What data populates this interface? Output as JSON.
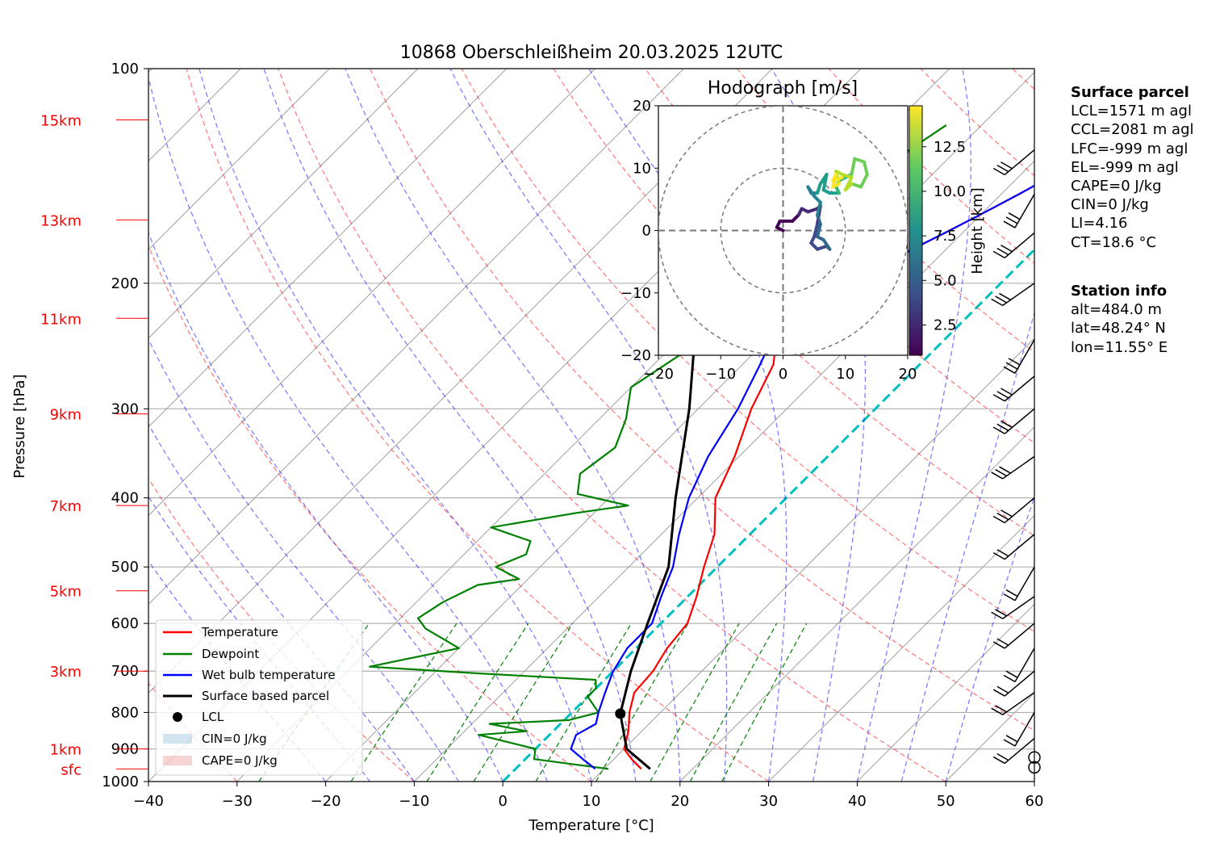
{
  "title": "10868 Oberschleißheim 20.03.2025 12UTC",
  "xlabel": "Temperature [°C]",
  "ylabel": "Pressure [hPa]",
  "hodograph": {
    "title": "Hodograph [m/s]",
    "x_ticks": [
      "−20",
      "−10",
      "0",
      "10",
      "20"
    ],
    "y_ticks": [
      "20",
      "10",
      "0",
      "−10",
      "−20"
    ],
    "colorbar_label": "Height [km]",
    "colorbar_ticks": [
      "12.5",
      "10.0",
      "7.5",
      "5.0",
      "2.5"
    ],
    "path": [
      [
        0,
        0
      ],
      [
        -1,
        0.5
      ],
      [
        -0.5,
        1.5
      ],
      [
        1.5,
        1.5
      ],
      [
        2.5,
        2.5
      ],
      [
        3,
        3.5
      ],
      [
        4,
        3
      ],
      [
        5.5,
        3.5
      ],
      [
        6,
        4
      ],
      [
        5.5,
        1
      ],
      [
        5,
        -1
      ],
      [
        4.5,
        -2
      ],
      [
        5.5,
        -3
      ],
      [
        7,
        -2.5
      ],
      [
        7.5,
        -3
      ],
      [
        6.5,
        -1.5
      ],
      [
        5.5,
        -1
      ],
      [
        6,
        1
      ],
      [
        5.5,
        2.5
      ],
      [
        6,
        4.5
      ],
      [
        5,
        5.5
      ],
      [
        4,
        7
      ],
      [
        4.5,
        6
      ],
      [
        5.5,
        6
      ],
      [
        6,
        7.5
      ],
      [
        7,
        9
      ],
      [
        6.5,
        6.5
      ],
      [
        7.5,
        6
      ],
      [
        9,
        6
      ],
      [
        8.5,
        7
      ],
      [
        9,
        8
      ],
      [
        10,
        8.5
      ],
      [
        11,
        9
      ],
      [
        11.5,
        11.5
      ],
      [
        13,
        11
      ],
      [
        13.5,
        9
      ],
      [
        12.5,
        7
      ],
      [
        11,
        7.5
      ],
      [
        10,
        6.5
      ],
      [
        11,
        8.5
      ],
      [
        9.5,
        9
      ],
      [
        8.5,
        9.5
      ],
      [
        9,
        7.5
      ],
      [
        8,
        7
      ],
      [
        8.5,
        9
      ],
      [
        8,
        8
      ],
      [
        9.5,
        8.5
      ]
    ]
  },
  "surface_parcel": {
    "heading": "Surface parcel",
    "lines": [
      "LCL=1571 m agl",
      "CCL=2081 m agl",
      "LFC=-999 m agl",
      "EL=-999 m agl",
      "CAPE=0 J/kg",
      "CIN=0 J/kg",
      "LI=4.16",
      "CT=18.6 °C"
    ]
  },
  "station_info": {
    "heading": "Station info",
    "lines": [
      "alt=484.0 m",
      "lat=48.24° N",
      "lon=11.55° E"
    ]
  },
  "legend": [
    "Temperature",
    "Dewpoint",
    "Wet bulb temperature",
    "Surface based parcel",
    "LCL",
    "CIN=0 J/kg",
    "CAPE=0 J/kg"
  ],
  "colors": {
    "temperature": "#ff0000",
    "dewpoint": "#008000",
    "wetbulb": "#0000ff",
    "parcel": "#000000",
    "isotherm0": "#00bfbf",
    "height_labels": "#ff0000"
  },
  "chart_data": {
    "type": "line",
    "title": "10868 Oberschleißheim 20.03.2025 12UTC",
    "xlabel": "Temperature [°C]",
    "ylabel": "Pressure [hPa]",
    "xlim": [
      -40,
      60
    ],
    "ylim": [
      1000,
      100
    ],
    "y_scale": "log",
    "grid": true,
    "legend_position": "lower-left",
    "x_ticks": [
      -40,
      -30,
      -20,
      -10,
      0,
      10,
      20,
      30,
      40,
      50,
      60
    ],
    "y_ticks": [
      100,
      200,
      300,
      400,
      500,
      600,
      700,
      800,
      900,
      1000
    ],
    "height_labels": [
      {
        "label": "sfc",
        "p": 960
      },
      {
        "label": "1km",
        "p": 900
      },
      {
        "label": "3km",
        "p": 700
      },
      {
        "label": "5km",
        "p": 540
      },
      {
        "label": "7km",
        "p": 410
      },
      {
        "label": "9km",
        "p": 305
      },
      {
        "label": "11km",
        "p": 224
      },
      {
        "label": "13km",
        "p": 163
      },
      {
        "label": "15km",
        "p": 118
      }
    ],
    "series": [
      {
        "name": "Temperature",
        "points": [
          [
            14.2,
            960
          ],
          [
            12,
            930
          ],
          [
            10,
            900
          ],
          [
            8.5,
            850
          ],
          [
            6.5,
            800
          ],
          [
            4.8,
            750
          ],
          [
            4.5,
            700
          ],
          [
            3.5,
            650
          ],
          [
            3,
            600
          ],
          [
            1,
            550
          ],
          [
            -1.5,
            500
          ],
          [
            -4,
            450
          ],
          [
            -8,
            400
          ],
          [
            -10.5,
            350
          ],
          [
            -14,
            300
          ],
          [
            -16.5,
            260
          ],
          [
            -19,
            240
          ],
          [
            -19,
            230
          ],
          [
            -18.5,
            220
          ],
          [
            -18,
            210
          ],
          [
            -17.5,
            200
          ],
          [
            -15,
            190
          ],
          [
            -14,
            180
          ],
          [
            -12,
            170
          ],
          [
            -10,
            160
          ],
          [
            -8,
            150
          ],
          [
            -6,
            140
          ],
          [
            -4,
            130
          ],
          [
            -2,
            125
          ],
          [
            0.5,
            120
          ],
          [
            1.8,
            118
          ]
        ]
      },
      {
        "name": "Dewpoint",
        "points": [
          [
            10.5,
            960
          ],
          [
            1,
            930
          ],
          [
            0,
            900
          ],
          [
            -8,
            860
          ],
          [
            -3,
            850
          ],
          [
            -8,
            830
          ],
          [
            0.5,
            820
          ],
          [
            3,
            800
          ],
          [
            0,
            760
          ],
          [
            0,
            740
          ],
          [
            -1,
            720
          ],
          [
            -15,
            705
          ],
          [
            -28,
            690
          ],
          [
            -20,
            650
          ],
          [
            -26,
            610
          ],
          [
            -28,
            590
          ],
          [
            -27,
            560
          ],
          [
            -25,
            530
          ],
          [
            -21,
            520
          ],
          [
            -25,
            500
          ],
          [
            -23,
            480
          ],
          [
            -24,
            460
          ],
          [
            -30,
            440
          ],
          [
            -22,
            420
          ],
          [
            -17,
            410
          ],
          [
            -24,
            395
          ],
          [
            -26,
            370
          ],
          [
            -25,
            340
          ],
          [
            -27,
            310
          ],
          [
            -30,
            280
          ],
          [
            -28,
            250
          ],
          [
            -26,
            225
          ],
          [
            -30,
            220
          ],
          [
            -32,
            200
          ],
          [
            -33,
            185
          ],
          [
            -32,
            170
          ],
          [
            -30,
            160
          ],
          [
            -28,
            150
          ],
          [
            -26,
            135
          ],
          [
            -24,
            120
          ]
        ]
      },
      {
        "name": "Wet bulb temperature",
        "points": [
          [
            9,
            960
          ],
          [
            6.5,
            930
          ],
          [
            4,
            900
          ],
          [
            3,
            860
          ],
          [
            4,
            830
          ],
          [
            3,
            800
          ],
          [
            1.5,
            750
          ],
          [
            0,
            700
          ],
          [
            -1,
            650
          ],
          [
            -1,
            600
          ],
          [
            -3,
            550
          ],
          [
            -5,
            500
          ],
          [
            -8,
            450
          ],
          [
            -11,
            400
          ],
          [
            -13.5,
            350
          ],
          [
            -15.5,
            300
          ],
          [
            -18,
            260
          ],
          [
            -19.5,
            240
          ],
          [
            -19.5,
            230
          ],
          [
            -19,
            220
          ],
          [
            -18,
            210
          ],
          [
            -17.5,
            200
          ],
          [
            -15,
            190
          ],
          [
            -14,
            180
          ],
          [
            -12,
            170
          ],
          [
            -10,
            160
          ],
          [
            -8,
            150
          ],
          [
            -6,
            140
          ],
          [
            -4,
            130
          ],
          [
            -2,
            125
          ],
          [
            0.2,
            120
          ],
          [
            1.8,
            118
          ]
        ]
      },
      {
        "name": "Surface based parcel",
        "points": [
          [
            15.2,
            960
          ],
          [
            10.3,
            900
          ],
          [
            5.6,
            803
          ],
          [
            2,
            700
          ],
          [
            -1.5,
            600
          ],
          [
            -5.5,
            500
          ],
          [
            -12.5,
            400
          ],
          [
            -21,
            300
          ],
          [
            -31,
            220
          ],
          [
            -35,
            200
          ],
          [
            -44,
            160
          ],
          [
            -53,
            130
          ]
        ]
      }
    ],
    "lcl": {
      "t": 5.6,
      "p": 803
    },
    "cin": 0,
    "cape": 0,
    "wind_levels_hpa": [
      955,
      925,
      870,
      800,
      750,
      700,
      650,
      600,
      550,
      500,
      450,
      400,
      350,
      300,
      270,
      240,
      200,
      170,
      150,
      130
    ]
  }
}
